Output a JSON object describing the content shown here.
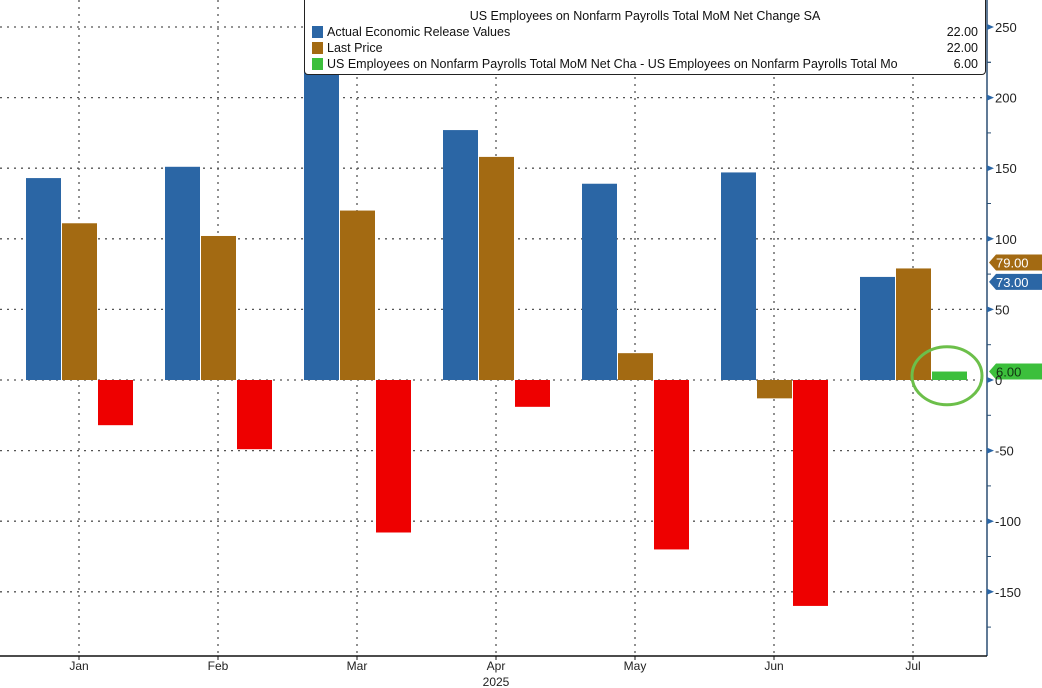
{
  "chart_data": {
    "type": "bar",
    "title": "US Employees on Nonfarm Payrolls Total MoM Net Change SA",
    "xlabel": "2025",
    "ylabel": "",
    "categories": [
      "Jan",
      "Feb",
      "Mar",
      "Apr",
      "May",
      "Jun",
      "Jul"
    ],
    "ylim": [
      -195,
      265
    ],
    "yticks": [
      250,
      200,
      150,
      100,
      50,
      0,
      -50,
      -100,
      -150
    ],
    "ytick_labels": [
      "250",
      "200",
      "150",
      "100",
      "50",
      "0",
      "-50",
      "-100",
      "-150"
    ],
    "grid": true,
    "legend_position": "top",
    "y_axis_side": "right",
    "series": [
      {
        "name": "Actual Economic Release Values",
        "legend_value": "22.00",
        "color": "#2b66a5",
        "values": [
          143,
          151,
          228,
          177,
          139,
          147,
          73
        ],
        "last_label": "73.00"
      },
      {
        "name": "Last Price",
        "legend_value": "22.00",
        "color": "#a36a12",
        "values": [
          111,
          102,
          120,
          158,
          19,
          -13,
          79
        ],
        "last_label": "79.00"
      },
      {
        "name": "US Employees on Nonfarm Payrolls Total MoM Net Cha - US Employees on Nonfarm Payrolls Total Mo",
        "legend_value": "6.00",
        "color": "#ee0000",
        "positive_color": "#3cbf3c",
        "legend_color": "#3cbf3c",
        "values": [
          -32,
          -49,
          -108,
          -19,
          -120,
          -160,
          6
        ],
        "last_label": "6.00"
      }
    ],
    "annotations": [
      {
        "type": "circle",
        "target": "Jul green bar",
        "color": "#6cbf4a"
      }
    ]
  }
}
